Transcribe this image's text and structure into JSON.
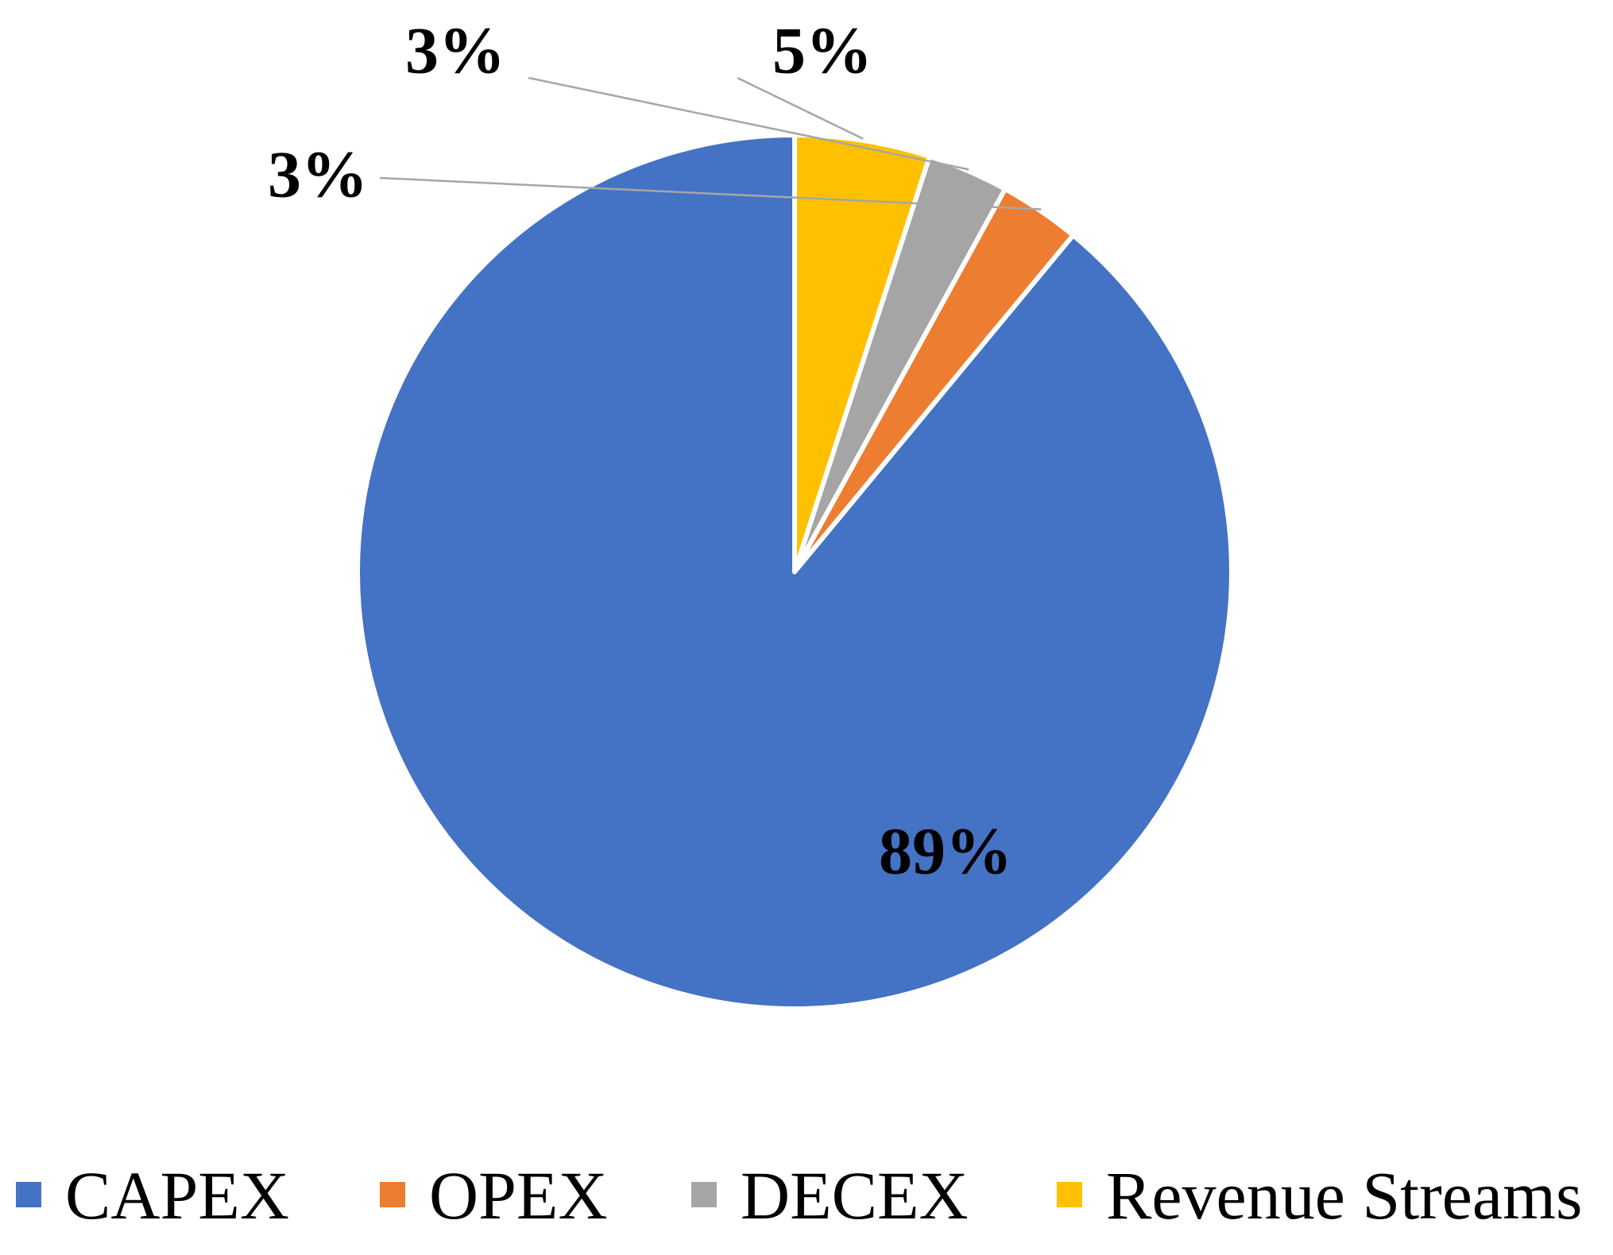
{
  "chart_data": {
    "type": "pie",
    "title": "",
    "slices": [
      {
        "name": "CAPEX",
        "value": 89,
        "label": "89%",
        "color": "#4472C4"
      },
      {
        "name": "OPEX",
        "value": 3,
        "label": "3%",
        "color": "#ED7D31"
      },
      {
        "name": "DECEX",
        "value": 3,
        "label": "3%",
        "color": "#A5A5A5"
      },
      {
        "name": "Revenue Streams",
        "value": 5,
        "label": "5%",
        "color": "#FFC000"
      }
    ],
    "start_angle": "12 o'clock",
    "direction": "clockwise",
    "legend_position": "bottom"
  }
}
